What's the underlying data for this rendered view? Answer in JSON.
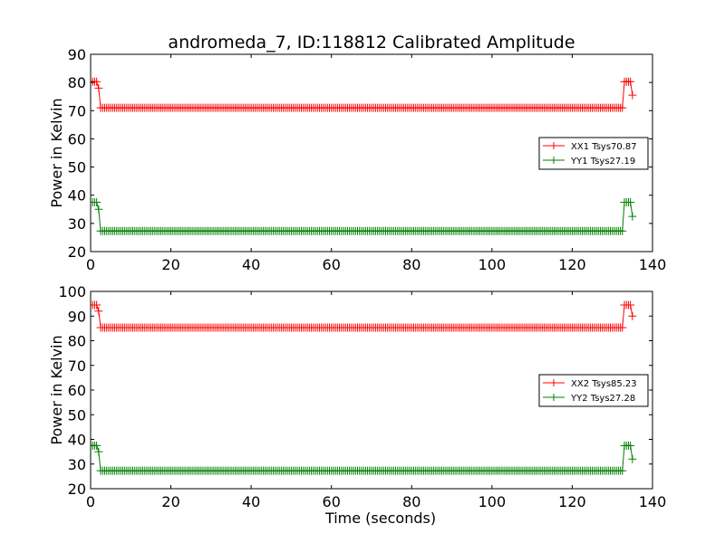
{
  "figure": {
    "title": "andromeda_7, ID:118812 Calibrated Amplitude"
  },
  "colors": {
    "xx": "#ff0000",
    "yy": "#008000",
    "frame": "#000000"
  },
  "chart_data": [
    {
      "type": "line",
      "title": "andromeda_7, ID:118812 Calibrated Amplitude",
      "xlabel": "",
      "ylabel": "Power in Kelvin",
      "xlim": [
        0,
        140
      ],
      "ylim": [
        20,
        90
      ],
      "xticks": [
        0,
        20,
        40,
        60,
        80,
        100,
        120,
        140
      ],
      "yticks": [
        20,
        30,
        40,
        50,
        60,
        70,
        80,
        90
      ],
      "grid": false,
      "legend_position": "right",
      "marker": "+",
      "sample_interval": 0.5,
      "series": [
        {
          "name": "XX1 Tsys70.87",
          "color": "#ff0000",
          "x_start": 0,
          "x_end": 135,
          "segments": [
            {
              "from": 0,
              "to": 1.5,
              "value": 80.3
            },
            {
              "from": 2,
              "to": 2,
              "value": 78
            },
            {
              "from": 2.5,
              "to": 132.5,
              "value": 71
            },
            {
              "from": 133,
              "to": 134.5,
              "value": 80.3
            },
            {
              "from": 135,
              "to": 135,
              "value": 75.5
            }
          ]
        },
        {
          "name": "YY1 Tsys27.19",
          "color": "#008000",
          "x_start": 0,
          "x_end": 135,
          "segments": [
            {
              "from": 0,
              "to": 1.5,
              "value": 37.5
            },
            {
              "from": 2,
              "to": 2,
              "value": 35
            },
            {
              "from": 2.5,
              "to": 132.5,
              "value": 27.3
            },
            {
              "from": 133,
              "to": 134.5,
              "value": 37.5
            },
            {
              "from": 135,
              "to": 135,
              "value": 32.5
            }
          ]
        }
      ]
    },
    {
      "type": "line",
      "title": "",
      "xlabel": "Time (seconds)",
      "ylabel": "Power in Kelvin",
      "xlim": [
        0,
        140
      ],
      "ylim": [
        20,
        100
      ],
      "xticks": [
        0,
        20,
        40,
        60,
        80,
        100,
        120,
        140
      ],
      "yticks": [
        20,
        30,
        40,
        50,
        60,
        70,
        80,
        90,
        100
      ],
      "grid": false,
      "legend_position": "right",
      "marker": "+",
      "sample_interval": 0.5,
      "series": [
        {
          "name": "XX2 Tsys85.23",
          "color": "#ff0000",
          "x_start": 0,
          "x_end": 135,
          "segments": [
            {
              "from": 0,
              "to": 1.5,
              "value": 94.5
            },
            {
              "from": 2,
              "to": 2,
              "value": 92
            },
            {
              "from": 2.5,
              "to": 132.5,
              "value": 85.3
            },
            {
              "from": 133,
              "to": 134.5,
              "value": 94.5
            },
            {
              "from": 135,
              "to": 135,
              "value": 90
            }
          ]
        },
        {
          "name": "YY2 Tsys27.28",
          "color": "#008000",
          "x_start": 0,
          "x_end": 135,
          "segments": [
            {
              "from": 0,
              "to": 1.5,
              "value": 37.5
            },
            {
              "from": 2,
              "to": 2,
              "value": 35
            },
            {
              "from": 2.5,
              "to": 132.5,
              "value": 27.3
            },
            {
              "from": 133,
              "to": 134.5,
              "value": 37.5
            },
            {
              "from": 135,
              "to": 135,
              "value": 32
            }
          ]
        }
      ]
    }
  ]
}
